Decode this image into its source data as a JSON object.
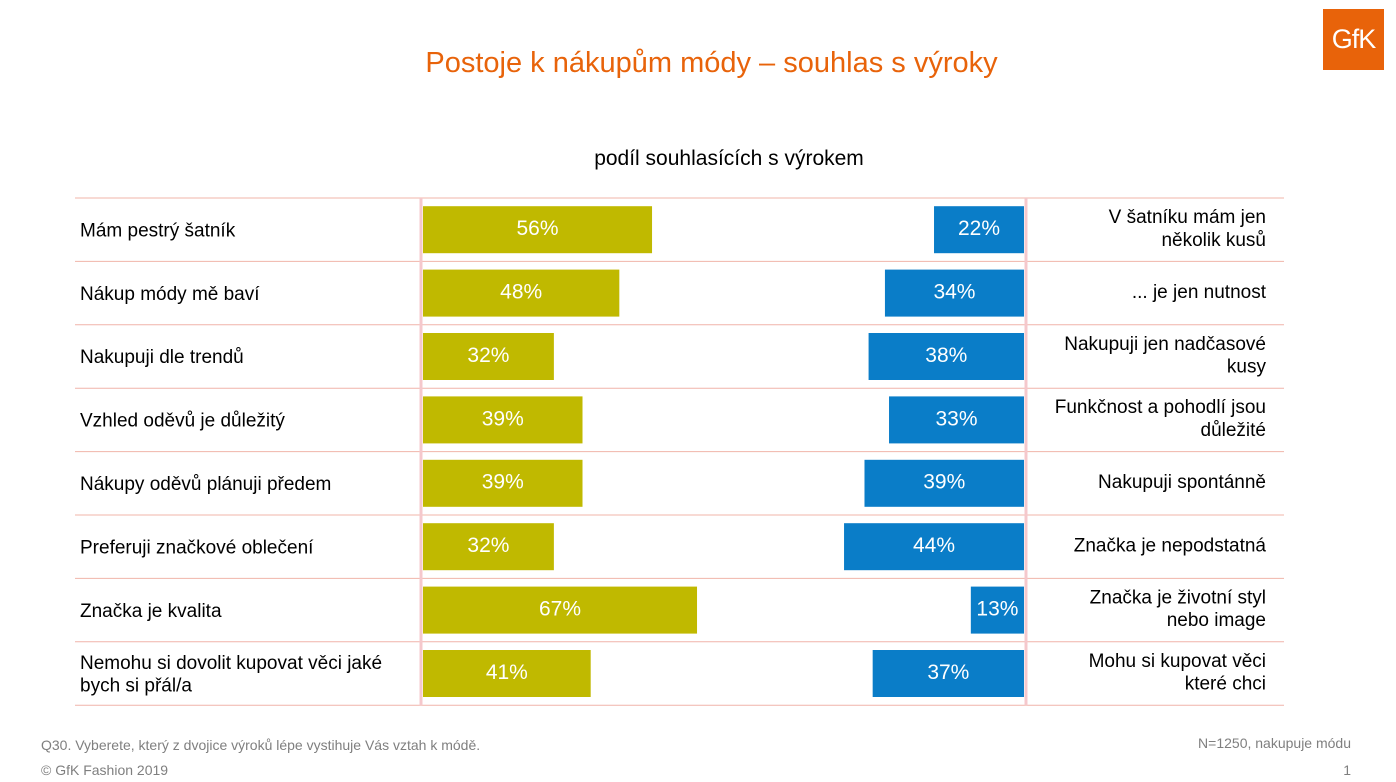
{
  "title": "Postoje k nákupům módy – souhlas s výroky",
  "logo": "GfK",
  "subtitle": "podíl souhlasících s výrokem",
  "colors": {
    "left": "#c0b900",
    "right": "#0a7dc8",
    "title": "#e8630a",
    "grid": "#f0b4aa",
    "axis": "#f5c8cc"
  },
  "chart_data": {
    "type": "bar",
    "categories": [
      "Mám pestrý šatník",
      "Nákup módy mě baví",
      "Nakupuji dle trendů",
      "Vzhled oděvů je důležitý",
      "Nákupy oděvů plánuji předem",
      "Preferuji značkové oblečení",
      "Značka je kvalita",
      "Nemohu si dovolit kupovat věci jaké bych si přál/a"
    ],
    "right_categories": [
      "V šatníku mám jen několik kusů",
      "... je jen nutnost",
      "Nakupuji jen nadčasové kusy",
      "Funkčnost a pohodlí jsou důležité",
      "Nakupuji spontánně",
      "Značka je nepodstatná",
      "Značka je životní styl nebo image",
      "Mohu si kupovat věci které chci"
    ],
    "series": [
      {
        "values": [
          56,
          48,
          32,
          39,
          39,
          32,
          67,
          41
        ]
      },
      {
        "values": [
          22,
          34,
          38,
          33,
          39,
          44,
          13,
          37
        ]
      }
    ],
    "value_suffix": "%",
    "xlim": [
      0,
      100
    ]
  },
  "footer": {
    "question": "Q30. Vyberete, který z dvojice výroků lépe vystihuje Vás vztah k módě.",
    "copyright": "© GfK Fashion 2019",
    "sample": "N=1250, nakupuje módu",
    "page_number": "1"
  }
}
